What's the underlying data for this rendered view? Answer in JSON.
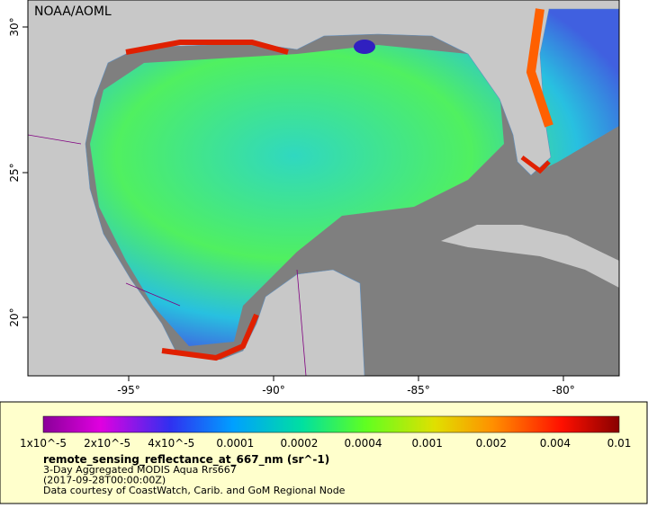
{
  "header": {
    "credit": "NOAA/AOML"
  },
  "map": {
    "lon_labels": [
      "-95°",
      "-90°",
      "-85°",
      "-80°"
    ],
    "lat_labels": [
      "30°",
      "25°",
      "20°"
    ]
  },
  "legend": {
    "colorbar_labels": [
      "1x10^-5",
      "2x10^-5",
      "4x10^-5",
      "0.0001",
      "0.0002",
      "0.0004",
      "0.001",
      "0.002",
      "0.004",
      "0.01"
    ],
    "variable": "remote_sensing_reflectance_at_667_nm (sr^-1)",
    "lines": [
      "3-Day Aggregated MODIS Aqua Rrs667",
      "(2017-09-28T00:00:00Z)",
      "Data courtesy of CoastWatch, Carib. and GoM Regional Node"
    ]
  }
}
